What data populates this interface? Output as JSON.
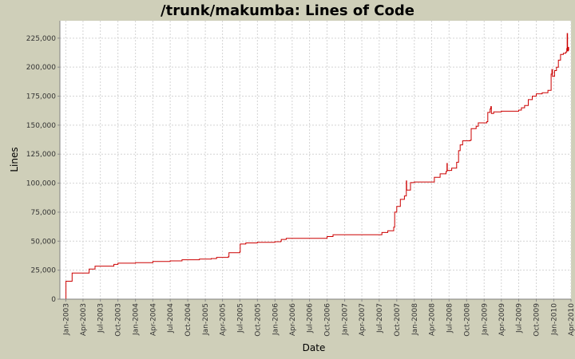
{
  "chart_data": {
    "type": "line",
    "title": "/trunk/makumba: Lines of Code",
    "xlabel": "Date",
    "ylabel": "Lines",
    "ylim": [
      0,
      240000
    ],
    "yticks": [
      0,
      25000,
      50000,
      75000,
      100000,
      125000,
      150000,
      175000,
      200000,
      225000
    ],
    "ytick_labels": [
      "0",
      "25,000",
      "50,000",
      "75,000",
      "100,000",
      "125,000",
      "150,000",
      "175,000",
      "200,000",
      "225,000"
    ],
    "xlim": [
      "2002-12-01",
      "2010-04-01"
    ],
    "xticks": [
      "2003-01-01",
      "2003-04-01",
      "2003-07-01",
      "2003-10-01",
      "2004-01-01",
      "2004-04-01",
      "2004-07-01",
      "2004-10-01",
      "2005-01-01",
      "2005-04-01",
      "2005-07-01",
      "2005-10-01",
      "2006-01-01",
      "2006-04-01",
      "2006-07-01",
      "2006-10-01",
      "2007-01-01",
      "2007-04-01",
      "2007-07-01",
      "2007-10-01",
      "2008-01-01",
      "2008-04-01",
      "2008-07-01",
      "2008-10-01",
      "2009-01-01",
      "2009-04-01",
      "2009-07-01",
      "2009-10-01",
      "2010-01-01",
      "2010-04-01"
    ],
    "xtick_labels": [
      "Jan-2003",
      "Apr-2003",
      "Jul-2003",
      "Oct-2003",
      "Jan-2004",
      "Apr-2004",
      "Jul-2004",
      "Oct-2004",
      "Jan-2005",
      "Apr-2005",
      "Jul-2005",
      "Oct-2005",
      "Jan-2006",
      "Apr-2006",
      "Jul-2006",
      "Oct-2006",
      "Jan-2007",
      "Apr-2007",
      "Jul-2007",
      "Oct-2007",
      "Jan-2008",
      "Apr-2008",
      "Jul-2008",
      "Oct-2008",
      "Jan-2009",
      "Apr-2009",
      "Jul-2009",
      "Oct-2009",
      "Jan-2010",
      "Apr-2010"
    ],
    "grid": true,
    "series": [
      {
        "color": "#cc0000",
        "points": [
          [
            "2002-12-25",
            0
          ],
          [
            "2003-01-02",
            15500
          ],
          [
            "2003-02-01",
            15500
          ],
          [
            "2003-02-03",
            22500
          ],
          [
            "2003-05-01",
            22500
          ],
          [
            "2003-05-03",
            26000
          ],
          [
            "2003-06-01",
            26000
          ],
          [
            "2003-06-03",
            28500
          ],
          [
            "2003-09-01",
            28500
          ],
          [
            "2003-09-10",
            30000
          ],
          [
            "2003-10-01",
            31000
          ],
          [
            "2004-01-01",
            31500
          ],
          [
            "2004-04-01",
            32500
          ],
          [
            "2004-07-01",
            33000
          ],
          [
            "2004-09-01",
            34000
          ],
          [
            "2004-12-01",
            34500
          ],
          [
            "2005-02-01",
            35000
          ],
          [
            "2005-03-01",
            36000
          ],
          [
            "2005-05-01",
            36500
          ],
          [
            "2005-05-05",
            40000
          ],
          [
            "2005-07-01",
            41000
          ],
          [
            "2005-07-03",
            47500
          ],
          [
            "2005-08-01",
            48500
          ],
          [
            "2005-10-01",
            49000
          ],
          [
            "2006-01-01",
            49500
          ],
          [
            "2006-02-01",
            50000
          ],
          [
            "2006-02-03",
            51500
          ],
          [
            "2006-03-01",
            52500
          ],
          [
            "2006-09-01",
            52500
          ],
          [
            "2006-10-01",
            54000
          ],
          [
            "2006-11-01",
            55500
          ],
          [
            "2007-07-01",
            55500
          ],
          [
            "2007-07-15",
            57500
          ],
          [
            "2007-08-15",
            59000
          ],
          [
            "2007-09-15",
            62000
          ],
          [
            "2007-09-20",
            75000
          ],
          [
            "2007-10-01",
            80000
          ],
          [
            "2007-10-20",
            86000
          ],
          [
            "2007-11-10",
            89000
          ],
          [
            "2007-11-20",
            102000
          ],
          [
            "2007-11-22",
            94000
          ],
          [
            "2007-12-10",
            94000
          ],
          [
            "2007-12-12",
            100500
          ],
          [
            "2008-01-01",
            101000
          ],
          [
            "2008-03-20",
            101000
          ],
          [
            "2008-04-15",
            105000
          ],
          [
            "2008-05-15",
            108000
          ],
          [
            "2008-06-15",
            110000
          ],
          [
            "2008-06-20",
            117000
          ],
          [
            "2008-06-22",
            111000
          ],
          [
            "2008-07-15",
            113000
          ],
          [
            "2008-08-10",
            118000
          ],
          [
            "2008-08-20",
            128000
          ],
          [
            "2008-08-28",
            133000
          ],
          [
            "2008-09-10",
            136500
          ],
          [
            "2008-10-20",
            137000
          ],
          [
            "2008-10-25",
            147000
          ],
          [
            "2008-11-20",
            149000
          ],
          [
            "2008-12-01",
            152000
          ],
          [
            "2009-01-15",
            153000
          ],
          [
            "2009-01-20",
            161000
          ],
          [
            "2009-02-01",
            164000
          ],
          [
            "2009-02-05",
            166000
          ],
          [
            "2009-02-08",
            160000
          ],
          [
            "2009-02-20",
            161500
          ],
          [
            "2009-04-01",
            162000
          ],
          [
            "2009-07-01",
            163000
          ],
          [
            "2009-07-15",
            165000
          ],
          [
            "2009-08-01",
            167000
          ],
          [
            "2009-08-20",
            172000
          ],
          [
            "2009-09-10",
            175000
          ],
          [
            "2009-10-01",
            177000
          ],
          [
            "2009-11-01",
            178000
          ],
          [
            "2009-12-01",
            180000
          ],
          [
            "2009-12-15",
            180000
          ],
          [
            "2009-12-18",
            194000
          ],
          [
            "2009-12-22",
            198000
          ],
          [
            "2009-12-25",
            192000
          ],
          [
            "2010-01-05",
            197000
          ],
          [
            "2010-01-15",
            200000
          ],
          [
            "2010-01-25",
            206000
          ],
          [
            "2010-02-05",
            211000
          ],
          [
            "2010-02-20",
            212000
          ],
          [
            "2010-03-05",
            213000
          ],
          [
            "2010-03-10",
            216000
          ],
          [
            "2010-03-12",
            229000
          ],
          [
            "2010-03-14",
            214000
          ],
          [
            "2010-03-18",
            217000
          ],
          [
            "2010-03-20",
            214500
          ]
        ]
      }
    ]
  }
}
